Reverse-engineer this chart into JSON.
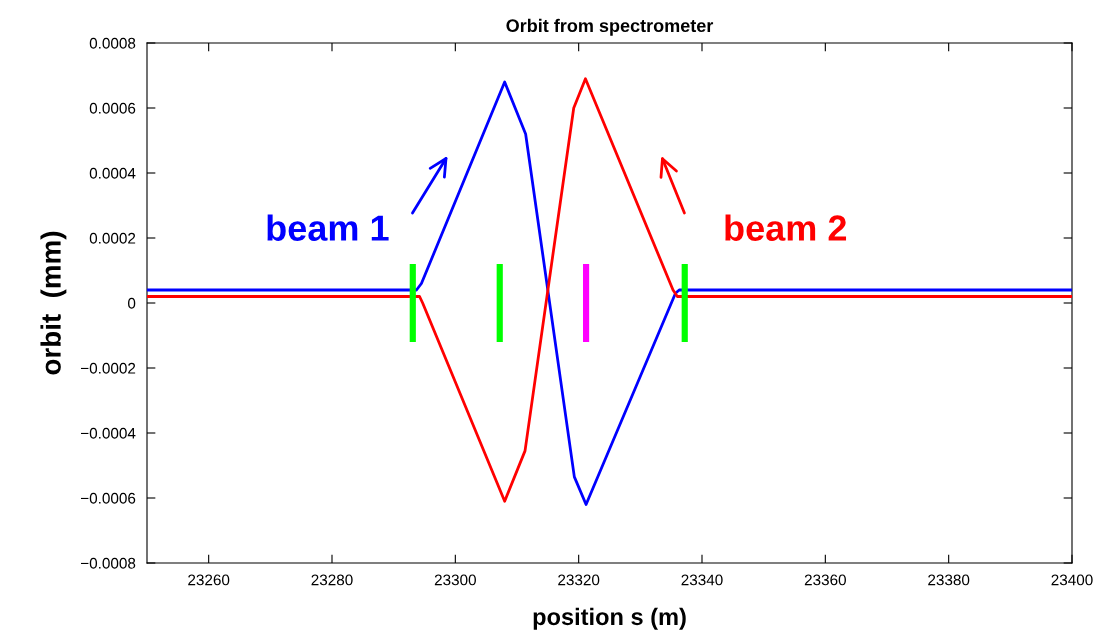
{
  "chart_data": {
    "type": "line",
    "title": "Orbit from spectrometer",
    "xlabel": "position s (m)",
    "ylabel": "orbit  (mm)",
    "xlim": [
      23250,
      23400
    ],
    "xticks": [
      23260,
      23280,
      23300,
      23320,
      23340,
      23360,
      23380,
      23400
    ],
    "ylim": [
      -0.0008,
      0.0008
    ],
    "yticks": [
      {
        "value": -0.0008,
        "label": "−0.0008"
      },
      {
        "value": -0.0006,
        "label": "−0.0006"
      },
      {
        "value": -0.0004,
        "label": "−0.0004"
      },
      {
        "value": -0.0002,
        "label": "−0.0002"
      },
      {
        "value": 0,
        "label": "0"
      },
      {
        "value": 0.0002,
        "label": "0.0002"
      },
      {
        "value": 0.0004,
        "label": "0.0004"
      },
      {
        "value": 0.0006,
        "label": "0.0006"
      },
      {
        "value": 0.0008,
        "label": "0.0008"
      }
    ],
    "grid": false,
    "series": [
      {
        "color": "#0000ff",
        "x": [
          23250,
          23293.7,
          23294.5,
          23308.0,
          23311.4,
          23319.3,
          23321.2,
          23335.7,
          23336.3,
          23400
        ],
        "values": [
          4e-05,
          4e-05,
          6e-05,
          0.00068,
          0.00052,
          -0.000535,
          -0.00062,
          3e-05,
          4e-05,
          4e-05
        ]
      },
      {
        "color": "#ff0000",
        "x": [
          23250,
          23294.2,
          23294.7,
          23308.0,
          23311.3,
          23319.2,
          23321.1,
          23335.3,
          23336.0,
          23400
        ],
        "values": [
          2e-05,
          2e-05,
          0.0,
          -0.00061,
          -0.000455,
          0.0006,
          0.00069,
          4e-05,
          2e-05,
          2e-05
        ]
      },
      {
        "type": "bar",
        "colors": [
          "#00ff00",
          "#00ff00",
          "#ff00ff",
          "#00ff00"
        ],
        "x": [
          23293.1,
          23307.2,
          23321.2,
          23337.2
        ],
        "base": [
          -0.00012,
          -0.00012,
          -0.00012,
          -0.00012
        ],
        "values": [
          0.00024,
          0.00024,
          0.00024,
          0.00024
        ]
      }
    ],
    "annotations": [
      "beam 1",
      "beam 2"
    ]
  }
}
